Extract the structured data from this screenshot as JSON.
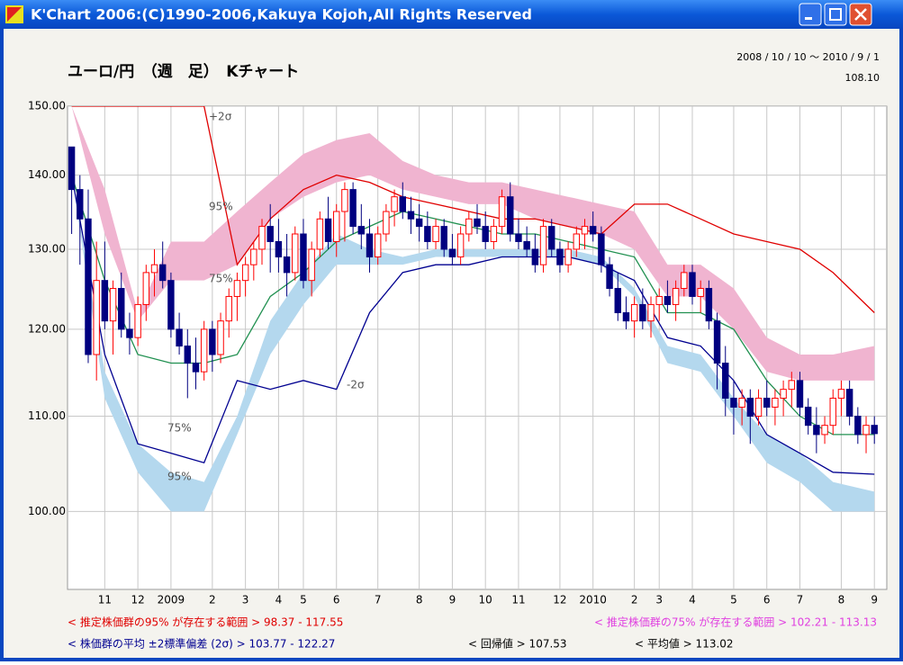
{
  "window": {
    "title": "K'Chart 2006:(C)1990-2006,Kakuya Kojoh,All Rights Reserved"
  },
  "chart_data": {
    "type": "candlestick",
    "title": "ユーロ/円　（週　足）　Kチャート",
    "date_range": "2008 / 10 / 10 ～ 2010 / 9 / 1",
    "last_price": "108.10",
    "log_scale": true,
    "grid": true,
    "ylim": [
      92.5,
      150
    ],
    "yticks": [
      {
        "value": 100,
        "label": "100.00"
      },
      {
        "value": 110,
        "label": "110.00"
      },
      {
        "value": 120,
        "label": "120.00"
      },
      {
        "value": 130,
        "label": "130.00"
      },
      {
        "value": 140,
        "label": "140.00"
      },
      {
        "value": 150,
        "label": "150.00"
      }
    ],
    "xlim": [
      -0.5,
      98.5
    ],
    "xticks": [
      {
        "value": 4,
        "label": "11"
      },
      {
        "value": 8,
        "label": "12"
      },
      {
        "value": 12,
        "label": "2009"
      },
      {
        "value": 17,
        "label": "2"
      },
      {
        "value": 21,
        "label": "3"
      },
      {
        "value": 25,
        "label": "4"
      },
      {
        "value": 28,
        "label": "5"
      },
      {
        "value": 32,
        "label": "6"
      },
      {
        "value": 37,
        "label": "7"
      },
      {
        "value": 42,
        "label": "8"
      },
      {
        "value": 46,
        "label": "9"
      },
      {
        "value": 50,
        "label": "10"
      },
      {
        "value": 54,
        "label": "11"
      },
      {
        "value": 59,
        "label": "12"
      },
      {
        "value": 63,
        "label": "2010"
      },
      {
        "value": 68,
        "label": "2"
      },
      {
        "value": 71,
        "label": "3"
      },
      {
        "value": 75,
        "label": "4"
      },
      {
        "value": 80,
        "label": "5"
      },
      {
        "value": 84,
        "label": "6"
      },
      {
        "value": 88,
        "label": "7"
      },
      {
        "value": 93,
        "label": "8"
      },
      {
        "value": 97,
        "label": "9"
      }
    ],
    "up_color": "#ff0000",
    "down_color": "#000080",
    "candles": [
      [
        144,
        144,
        132,
        138
      ],
      [
        138,
        140,
        128,
        134
      ],
      [
        134,
        138,
        116,
        117
      ],
      [
        117,
        131,
        114,
        126
      ],
      [
        126,
        131,
        120,
        121
      ],
      [
        121,
        126,
        117,
        125
      ],
      [
        125,
        127,
        119,
        120
      ],
      [
        120,
        122,
        117,
        119
      ],
      [
        119,
        124,
        118,
        123
      ],
      [
        123,
        128,
        121,
        127
      ],
      [
        127,
        130,
        124,
        128
      ],
      [
        128,
        131,
        125,
        126
      ],
      [
        126,
        127,
        119,
        120
      ],
      [
        120,
        122,
        117,
        118
      ],
      [
        118,
        120,
        112,
        116
      ],
      [
        116,
        119,
        113,
        115
      ],
      [
        115,
        121,
        114,
        120
      ],
      [
        120,
        121,
        115,
        117
      ],
      [
        117,
        122,
        116,
        121
      ],
      [
        121,
        125,
        119,
        124
      ],
      [
        124,
        127,
        121,
        126
      ],
      [
        126,
        129,
        124,
        128
      ],
      [
        128,
        131,
        126,
        130
      ],
      [
        130,
        134,
        128,
        133
      ],
      [
        133,
        136,
        127,
        131
      ],
      [
        131,
        134,
        127,
        129
      ],
      [
        129,
        132,
        124,
        127
      ],
      [
        127,
        133,
        126,
        132
      ],
      [
        132,
        134,
        125,
        126
      ],
      [
        126,
        131,
        124,
        130
      ],
      [
        130,
        135,
        129,
        134
      ],
      [
        134,
        137,
        130,
        131
      ],
      [
        131,
        136,
        129,
        135
      ],
      [
        135,
        139,
        131,
        138
      ],
      [
        138,
        139,
        132,
        133
      ],
      [
        133,
        136,
        130,
        132
      ],
      [
        132,
        134,
        127,
        129
      ],
      [
        129,
        133,
        128,
        132
      ],
      [
        132,
        136,
        131,
        135
      ],
      [
        135,
        138,
        133,
        137
      ],
      [
        137,
        139,
        134,
        135
      ],
      [
        135,
        137,
        132,
        134
      ],
      [
        134,
        136,
        131,
        133
      ],
      [
        133,
        135,
        130,
        131
      ],
      [
        131,
        134,
        130,
        133
      ],
      [
        133,
        134,
        129,
        130
      ],
      [
        130,
        132,
        128,
        129
      ],
      [
        129,
        133,
        128,
        132
      ],
      [
        132,
        135,
        131,
        134
      ],
      [
        134,
        136,
        132,
        133
      ],
      [
        133,
        135,
        130,
        131
      ],
      [
        131,
        134,
        130,
        133
      ],
      [
        133,
        138,
        132,
        137
      ],
      [
        137,
        139,
        131,
        132
      ],
      [
        132,
        134,
        130,
        131
      ],
      [
        131,
        133,
        129,
        130
      ],
      [
        130,
        132,
        127,
        128
      ],
      [
        128,
        134,
        127,
        133
      ],
      [
        133,
        134,
        129,
        130
      ],
      [
        130,
        131,
        127,
        128
      ],
      [
        128,
        131,
        127,
        130
      ],
      [
        130,
        133,
        129,
        132
      ],
      [
        132,
        134,
        130,
        133
      ],
      [
        133,
        135,
        131,
        132
      ],
      [
        132,
        133,
        127,
        128
      ],
      [
        128,
        129,
        124,
        125
      ],
      [
        125,
        127,
        121,
        122
      ],
      [
        122,
        124,
        120,
        121
      ],
      [
        121,
        124,
        119,
        123
      ],
      [
        123,
        125,
        120,
        121
      ],
      [
        121,
        124,
        119,
        123
      ],
      [
        123,
        125,
        121,
        124
      ],
      [
        124,
        126,
        122,
        123
      ],
      [
        123,
        126,
        121,
        125
      ],
      [
        125,
        128,
        124,
        127
      ],
      [
        127,
        128,
        123,
        124
      ],
      [
        124,
        126,
        122,
        125
      ],
      [
        125,
        126,
        120,
        121
      ],
      [
        121,
        122,
        113,
        116
      ],
      [
        116,
        118,
        110,
        112
      ],
      [
        112,
        114,
        108,
        111
      ],
      [
        111,
        113,
        109,
        112
      ],
      [
        112,
        113,
        107,
        110
      ],
      [
        110,
        113,
        109,
        112
      ],
      [
        112,
        114,
        110,
        111
      ],
      [
        111,
        113,
        109,
        112
      ],
      [
        112,
        114,
        110,
        113
      ],
      [
        113,
        115,
        111,
        114
      ],
      [
        114,
        115,
        110,
        111
      ],
      [
        111,
        112,
        108,
        109
      ],
      [
        109,
        111,
        106,
        108
      ],
      [
        108,
        110,
        107,
        109
      ],
      [
        109,
        113,
        108,
        112
      ],
      [
        112,
        114,
        110,
        113
      ],
      [
        113,
        114,
        109,
        110
      ],
      [
        110,
        111,
        107,
        108
      ],
      [
        108,
        110,
        106,
        109
      ],
      [
        109,
        110,
        107,
        108.1
      ]
    ],
    "line_x": [
      0,
      4,
      8,
      12,
      16,
      20,
      24,
      28,
      32,
      36,
      40,
      44,
      48,
      52,
      56,
      60,
      64,
      68,
      72,
      76,
      80,
      84,
      88,
      92,
      97
    ],
    "bands": [
      {
        "color": "#f0b4d0",
        "upper": [
          150,
          138,
          122,
          131,
          131,
          135,
          139,
          143,
          145,
          146,
          142,
          140,
          139,
          139,
          138,
          137,
          136,
          135,
          128,
          128,
          125,
          119,
          117,
          117,
          118
        ],
        "lower": [
          150,
          132,
          121,
          126,
          126,
          128,
          134,
          137,
          139,
          140,
          138,
          137,
          136,
          136,
          134,
          133,
          132,
          130,
          124,
          124,
          120,
          115,
          114,
          114,
          114
        ]
      },
      {
        "color": "#b4d8ee",
        "upper": [
          140,
          115,
          107,
          104,
          103,
          110,
          121,
          127,
          132,
          130,
          129,
          130,
          130,
          130,
          130,
          130,
          129,
          125,
          118,
          117,
          112,
          108,
          106,
          103,
          102
        ],
        "lower": [
          140,
          112,
          104,
          100,
          100,
          108,
          117,
          123,
          128,
          128,
          128,
          129,
          129,
          129,
          129,
          129,
          128,
          124,
          116,
          115,
          110,
          105,
          103,
          100,
          100
        ]
      }
    ],
    "lines": [
      {
        "color": "#e00000",
        "values": [
          150,
          150,
          150,
          150,
          150,
          128,
          134,
          138,
          140,
          139,
          137,
          136,
          135,
          134,
          134,
          133,
          132,
          136,
          136,
          134,
          132,
          131,
          130,
          127,
          122
        ]
      },
      {
        "color": "#209050",
        "values": [
          140,
          126,
          117,
          116,
          116,
          117,
          124,
          127,
          131,
          133,
          135,
          134,
          133,
          132,
          132,
          131,
          130,
          129,
          122,
          122,
          120,
          114,
          110,
          108,
          108
        ]
      },
      {
        "color": "#000090",
        "values": [
          140,
          117,
          107,
          106,
          105,
          114,
          113,
          114,
          113,
          122,
          127,
          128,
          128,
          129,
          129,
          129,
          128,
          126,
          119,
          118,
          114,
          108,
          106,
          104,
          103.8
        ]
      }
    ],
    "annotations": [
      "+2σ",
      "95%",
      "75%",
      "-2σ",
      "75%",
      "95%"
    ],
    "footer": [
      {
        "text": "< 推定株価群の95% が存在する範囲 > 98.37 - 117.55",
        "color": "#e00000"
      },
      {
        "text": "< 推定株価群の75% が存在する範囲 > 102.21 - 113.13",
        "color": "#e040e0"
      },
      {
        "text": "< 株価群の平均 ±2標準偏差 (2σ) > 103.77 - 122.27",
        "color": "#000090"
      },
      {
        "text": "< 回帰値 > 107.53",
        "color": "#000000"
      },
      {
        "text": "< 平均値 > 113.02",
        "color": "#000000"
      }
    ]
  }
}
